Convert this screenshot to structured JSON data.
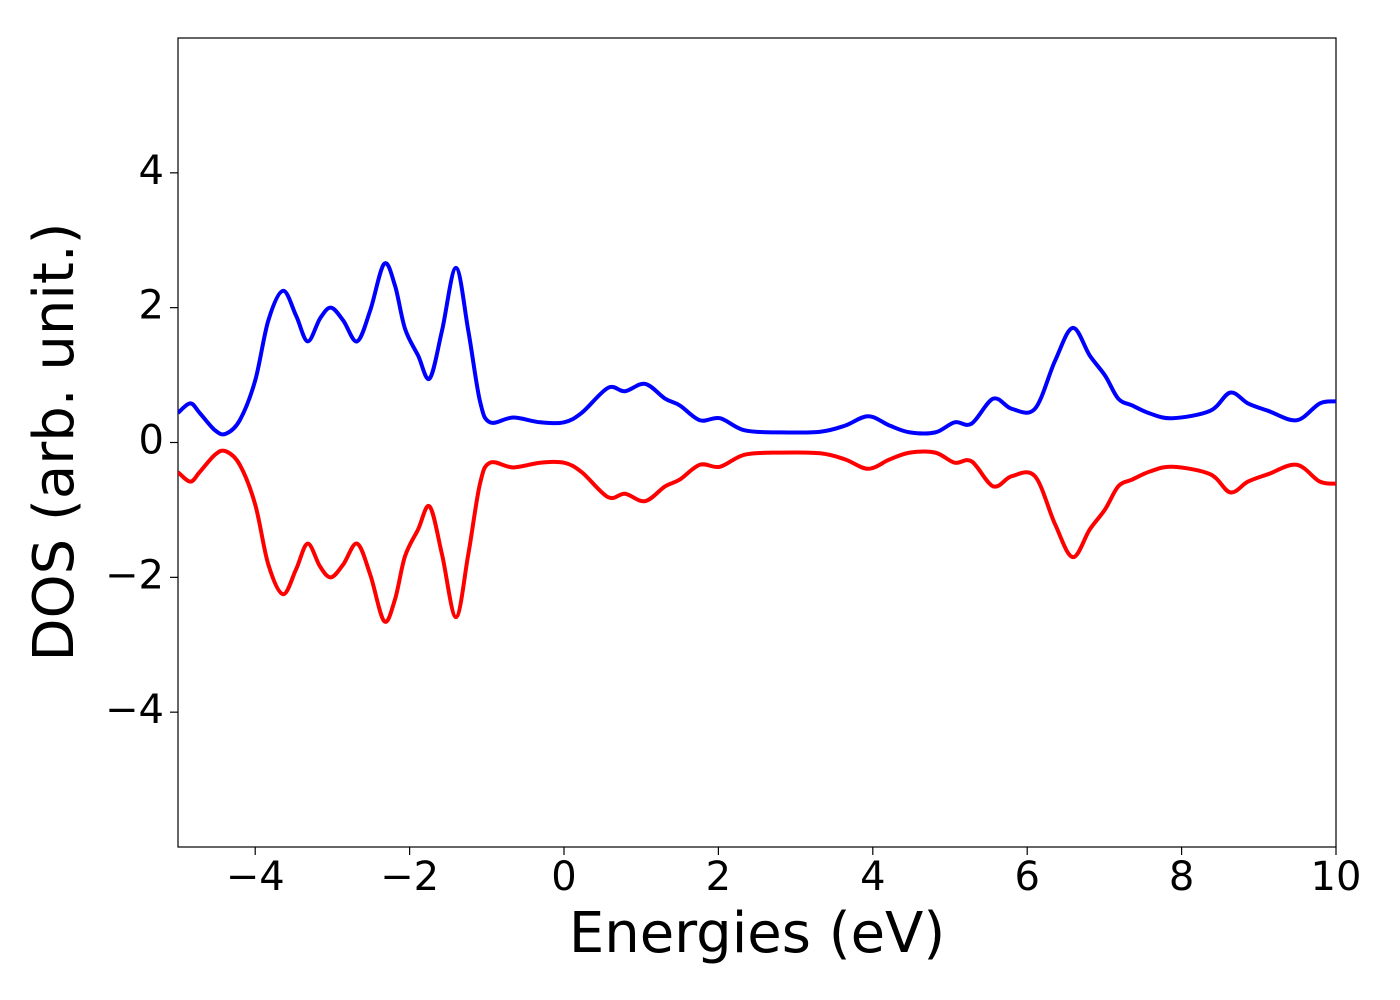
{
  "chart_data": {
    "type": "line",
    "xlabel": "Energies (eV)",
    "ylabel": "DOS (arb. unit.)",
    "x": [
      -5,
      -4.84,
      -4.72,
      -4.52,
      -4.38,
      -4.2,
      -4.0,
      -3.83,
      -3.64,
      -3.47,
      -3.32,
      -3.16,
      -3.02,
      -2.86,
      -2.68,
      -2.51,
      -2.33,
      -2.19,
      -2.06,
      -1.89,
      -1.74,
      -1.58,
      -1.4,
      -1.24,
      -1.09,
      -0.96,
      -0.66,
      -0.31,
      0.0,
      0.23,
      0.57,
      0.79,
      1.05,
      1.31,
      1.5,
      1.76,
      2.02,
      2.34,
      2.8,
      3.32,
      3.64,
      3.94,
      4.22,
      4.48,
      4.81,
      5.06,
      5.28,
      5.56,
      5.8,
      6.1,
      6.36,
      6.59,
      6.81,
      7.01,
      7.18,
      7.36,
      7.59,
      7.88,
      8.37,
      8.63,
      8.86,
      9.12,
      9.49,
      9.79,
      10
    ],
    "series": [
      {
        "color": "#0000ff",
        "values": [
          0.44,
          0.58,
          0.44,
          0.18,
          0.13,
          0.33,
          0.92,
          1.81,
          2.25,
          1.88,
          1.5,
          1.84,
          2.0,
          1.81,
          1.5,
          1.96,
          2.65,
          2.33,
          1.69,
          1.29,
          0.95,
          1.66,
          2.59,
          1.66,
          0.62,
          0.3,
          0.37,
          0.3,
          0.3,
          0.44,
          0.81,
          0.76,
          0.87,
          0.65,
          0.55,
          0.33,
          0.36,
          0.18,
          0.15,
          0.16,
          0.25,
          0.39,
          0.25,
          0.15,
          0.15,
          0.3,
          0.28,
          0.65,
          0.5,
          0.5,
          1.21,
          1.7,
          1.29,
          0.99,
          0.65,
          0.55,
          0.43,
          0.36,
          0.47,
          0.74,
          0.58,
          0.47,
          0.33,
          0.58,
          0.61
        ]
      },
      {
        "color": "#ff0000",
        "values": [
          -0.44,
          -0.58,
          -0.44,
          -0.18,
          -0.13,
          -0.33,
          -0.92,
          -1.81,
          -2.25,
          -1.88,
          -1.5,
          -1.84,
          -2.0,
          -1.81,
          -1.5,
          -1.96,
          -2.65,
          -2.33,
          -1.69,
          -1.29,
          -0.95,
          -1.66,
          -2.59,
          -1.66,
          -0.62,
          -0.3,
          -0.37,
          -0.3,
          -0.3,
          -0.44,
          -0.81,
          -0.76,
          -0.87,
          -0.65,
          -0.55,
          -0.33,
          -0.36,
          -0.18,
          -0.15,
          -0.16,
          -0.25,
          -0.39,
          -0.25,
          -0.15,
          -0.15,
          -0.3,
          -0.28,
          -0.65,
          -0.5,
          -0.5,
          -1.21,
          -1.7,
          -1.29,
          -0.99,
          -0.65,
          -0.55,
          -0.43,
          -0.36,
          -0.47,
          -0.74,
          -0.58,
          -0.47,
          -0.33,
          -0.58,
          -0.61
        ]
      }
    ],
    "xlim": [
      -5,
      10
    ],
    "xticks": [
      {
        "value": -4,
        "label": "−4"
      },
      {
        "value": -2,
        "label": "−2"
      },
      0,
      2,
      4,
      6,
      8,
      10
    ],
    "ylim": [
      -6,
      6
    ],
    "yticks": [
      {
        "value": -4,
        "label": "−4"
      },
      {
        "value": -2,
        "label": "−2"
      },
      0,
      2,
      4
    ],
    "grid": false
  }
}
